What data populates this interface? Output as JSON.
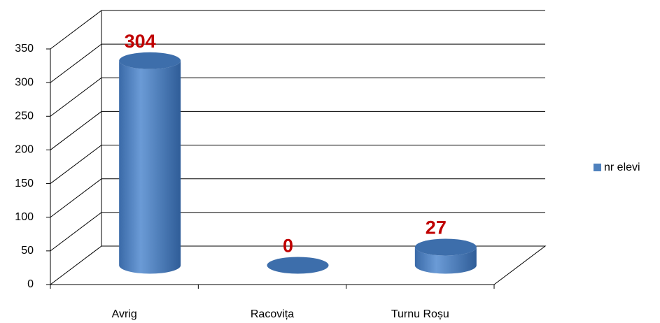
{
  "chart_data": {
    "type": "bar3d",
    "categories": [
      "Avrig",
      "Racovița",
      "Turnu Roșu"
    ],
    "series": [
      {
        "name": "nr elevi",
        "color": "#4f81bd",
        "values": [
          304,
          0,
          27
        ]
      }
    ],
    "ylim": [
      0,
      350
    ],
    "yticks": [
      0,
      50,
      100,
      150,
      200,
      250,
      300,
      350
    ],
    "grid": true,
    "legend": "right",
    "value_label_color": "#c00000"
  }
}
